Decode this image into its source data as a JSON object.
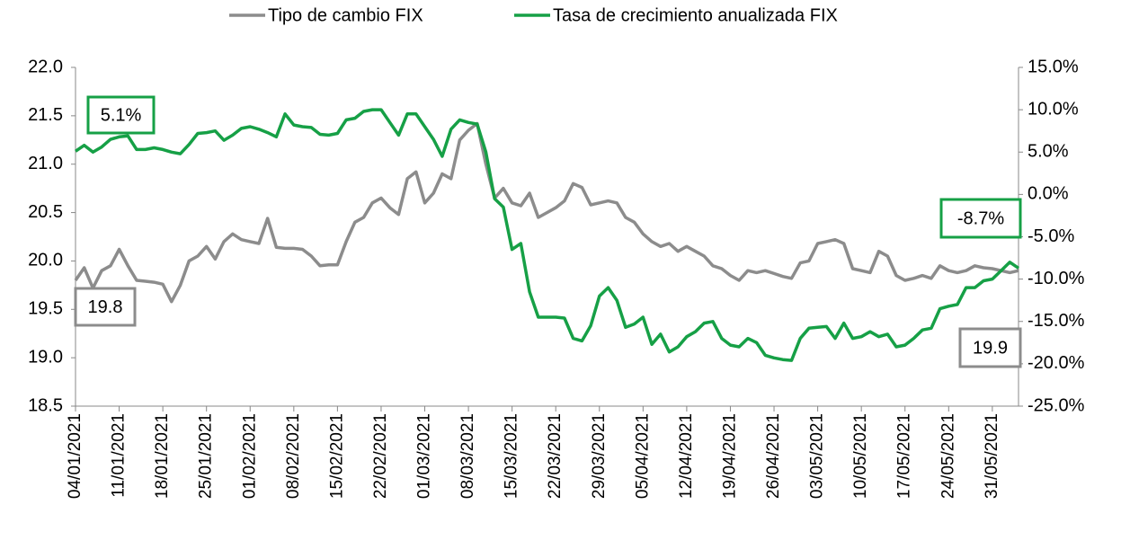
{
  "chart_data": {
    "type": "line",
    "categories": [
      "04/01/2021",
      null,
      null,
      null,
      null,
      "11/01/2021",
      null,
      null,
      null,
      null,
      "18/01/2021",
      null,
      null,
      null,
      null,
      "25/01/2021",
      null,
      null,
      null,
      null,
      "01/02/2021",
      null,
      null,
      null,
      null,
      "08/02/2021",
      null,
      null,
      null,
      null,
      "15/02/2021",
      null,
      null,
      null,
      null,
      "22/02/2021",
      null,
      null,
      null,
      null,
      "01/03/2021",
      null,
      null,
      null,
      null,
      "08/03/2021",
      null,
      null,
      null,
      null,
      "15/03/2021",
      null,
      null,
      null,
      null,
      "22/03/2021",
      null,
      null,
      null,
      null,
      "29/03/2021",
      null,
      null,
      null,
      null,
      "05/04/2021",
      null,
      null,
      null,
      null,
      "12/04/2021",
      null,
      null,
      null,
      null,
      "19/04/2021",
      null,
      null,
      null,
      null,
      "26/04/2021",
      null,
      null,
      null,
      null,
      "03/05/2021",
      null,
      null,
      null,
      null,
      "10/05/2021",
      null,
      null,
      null,
      null,
      "17/05/2021",
      null,
      null,
      null,
      null,
      "24/05/2021",
      null,
      null,
      null,
      null,
      "31/05/2021",
      null,
      null,
      null
    ],
    "series": [
      {
        "name": "Tipo de cambio FIX",
        "color": "#8c8c8c",
        "axis": "y",
        "values": [
          19.8,
          19.93,
          19.72,
          19.9,
          19.95,
          20.12,
          19.95,
          19.8,
          19.79,
          19.78,
          19.76,
          19.58,
          19.75,
          20.0,
          20.05,
          20.15,
          20.02,
          20.2,
          20.28,
          20.22,
          20.2,
          20.18,
          20.44,
          20.14,
          20.13,
          20.13,
          20.12,
          20.05,
          19.95,
          19.96,
          19.96,
          20.2,
          20.4,
          20.45,
          20.6,
          20.65,
          20.55,
          20.48,
          20.85,
          20.92,
          20.6,
          20.7,
          20.9,
          20.85,
          21.25,
          21.35,
          21.42,
          21.0,
          20.65,
          20.75,
          20.6,
          20.57,
          20.7,
          20.45,
          20.5,
          20.55,
          20.62,
          20.8,
          20.76,
          20.58,
          20.6,
          20.62,
          20.6,
          20.45,
          20.4,
          20.28,
          20.2,
          20.15,
          20.18,
          20.1,
          20.15,
          20.1,
          20.05,
          19.95,
          19.92,
          19.85,
          19.8,
          19.9,
          19.88,
          19.9,
          19.87,
          19.84,
          19.82,
          19.98,
          20.0,
          20.18,
          20.2,
          20.22,
          20.18,
          19.92,
          19.9,
          19.88,
          20.1,
          20.05,
          19.85,
          19.8,
          19.82,
          19.85,
          19.82,
          19.95,
          19.9,
          19.88,
          19.9,
          19.95,
          19.93,
          19.92,
          19.9,
          19.88,
          19.9
        ]
      },
      {
        "name": "Tasa de crecimiento anualizada FIX",
        "color": "#16a046",
        "axis": "y2",
        "values": [
          5.1,
          5.8,
          5.0,
          5.6,
          6.5,
          6.8,
          6.9,
          5.3,
          5.3,
          5.5,
          5.3,
          5.0,
          4.8,
          5.9,
          7.2,
          7.3,
          7.5,
          6.4,
          7.0,
          7.8,
          8.0,
          7.7,
          7.3,
          6.8,
          9.5,
          8.2,
          8.0,
          7.9,
          7.1,
          7.0,
          7.2,
          8.8,
          9.0,
          9.8,
          10.0,
          10.0,
          8.5,
          7.0,
          9.5,
          9.5,
          8.0,
          6.5,
          4.5,
          7.7,
          8.8,
          8.5,
          8.3,
          5.0,
          -0.5,
          -1.5,
          -6.5,
          -5.8,
          -11.5,
          -14.5,
          -14.5,
          -14.5,
          -14.6,
          -17.0,
          -17.3,
          -15.5,
          -12.0,
          -11.0,
          -12.5,
          -15.7,
          -15.3,
          -14.5,
          -17.7,
          -16.5,
          -18.6,
          -18.0,
          -16.8,
          -16.2,
          -15.2,
          -15.0,
          -17.0,
          -17.8,
          -18.0,
          -17.0,
          -17.5,
          -19.0,
          -19.3,
          -19.5,
          -19.6,
          -17.0,
          -15.8,
          -15.7,
          -15.6,
          -17.0,
          -15.2,
          -17.0,
          -16.8,
          -16.2,
          -16.8,
          -16.5,
          -18.0,
          -17.8,
          -17.0,
          -16.0,
          -15.8,
          -13.5,
          -13.2,
          -13.0,
          -11.0,
          -11.0,
          -10.2,
          -10.0,
          -9.0,
          -8.0,
          -8.7
        ]
      }
    ],
    "ylim": [
      18.5,
      22
    ],
    "yticks": [
      {
        "value": 18.5,
        "label": "18.5"
      },
      {
        "value": 19,
        "label": "19.0"
      },
      19.5,
      {
        "value": 20,
        "label": "20.0"
      },
      20.5,
      {
        "value": 21,
        "label": "21.0"
      },
      21.5,
      {
        "value": 22,
        "label": "22.0"
      }
    ],
    "y2lim": [
      -25,
      15
    ],
    "y2ticks": [
      {
        "value": -25,
        "label": "-25.0%"
      },
      {
        "value": -20,
        "label": "-20.0%"
      },
      {
        "value": -15,
        "label": "-15.0%"
      },
      {
        "value": -10,
        "label": "-10.0%"
      },
      {
        "value": -5,
        "label": "-5.0%"
      },
      {
        "value": 0,
        "label": "0.0%"
      },
      {
        "value": 5,
        "label": "5.0%"
      },
      {
        "value": 10,
        "label": "10.0%"
      },
      {
        "value": 15,
        "label": "15.0%"
      }
    ],
    "annotations": [
      "5.1%",
      "19.8",
      "-8.7%",
      "19.9"
    ],
    "legend": "top"
  }
}
